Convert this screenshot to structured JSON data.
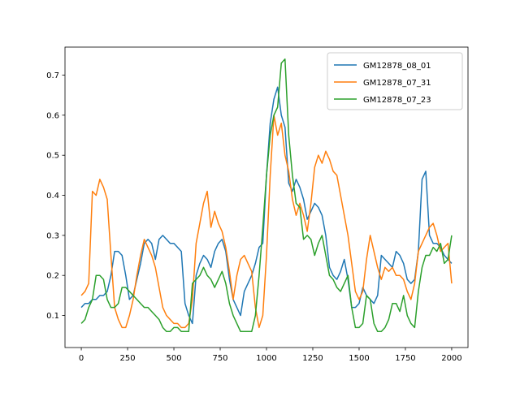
{
  "chart_data": {
    "type": "line",
    "title": "",
    "xlabel": "",
    "ylabel": "",
    "xlim": [
      -88,
      2088
    ],
    "ylim": [
      0.02,
      0.77
    ],
    "xticks": [
      0,
      250,
      500,
      750,
      1000,
      1250,
      1500,
      1750,
      2000
    ],
    "yticks": [
      0.1,
      0.2,
      0.3,
      0.4,
      0.5,
      0.6,
      0.7
    ],
    "grid": false,
    "legend_position": "top-right",
    "series": [
      {
        "name": "GM12878_08_01",
        "color": "#1f77b4",
        "x": [
          0,
          20,
          40,
          60,
          80,
          100,
          120,
          140,
          160,
          180,
          200,
          220,
          240,
          260,
          280,
          300,
          320,
          340,
          360,
          380,
          400,
          420,
          440,
          460,
          480,
          500,
          520,
          540,
          560,
          580,
          600,
          620,
          640,
          660,
          680,
          700,
          720,
          740,
          760,
          780,
          800,
          820,
          840,
          860,
          880,
          900,
          920,
          940,
          960,
          980,
          1000,
          1020,
          1040,
          1060,
          1080,
          1100,
          1120,
          1140,
          1160,
          1180,
          1200,
          1220,
          1240,
          1260,
          1280,
          1300,
          1320,
          1340,
          1360,
          1380,
          1400,
          1420,
          1440,
          1460,
          1480,
          1500,
          1520,
          1540,
          1560,
          1580,
          1600,
          1620,
          1640,
          1660,
          1680,
          1700,
          1720,
          1740,
          1760,
          1780,
          1800,
          1820,
          1840,
          1860,
          1880,
          1900,
          1920,
          1940,
          1960,
          1980,
          2000
        ],
        "y": [
          0.12,
          0.13,
          0.13,
          0.14,
          0.14,
          0.15,
          0.15,
          0.16,
          0.2,
          0.26,
          0.26,
          0.25,
          0.2,
          0.14,
          0.15,
          0.19,
          0.23,
          0.28,
          0.29,
          0.28,
          0.24,
          0.29,
          0.3,
          0.29,
          0.28,
          0.28,
          0.27,
          0.26,
          0.13,
          0.1,
          0.08,
          0.2,
          0.23,
          0.25,
          0.24,
          0.22,
          0.26,
          0.28,
          0.29,
          0.26,
          0.19,
          0.14,
          0.12,
          0.1,
          0.16,
          0.18,
          0.2,
          0.23,
          0.27,
          0.28,
          0.45,
          0.58,
          0.64,
          0.67,
          0.6,
          0.57,
          0.43,
          0.41,
          0.44,
          0.42,
          0.39,
          0.34,
          0.36,
          0.38,
          0.37,
          0.35,
          0.3,
          0.22,
          0.2,
          0.19,
          0.21,
          0.24,
          0.19,
          0.12,
          0.12,
          0.13,
          0.17,
          0.15,
          0.14,
          0.13,
          0.15,
          0.25,
          0.24,
          0.23,
          0.22,
          0.26,
          0.25,
          0.23,
          0.19,
          0.18,
          0.19,
          0.26,
          0.44,
          0.46,
          0.3,
          0.28,
          0.28,
          0.27,
          0.25,
          0.24,
          0.23
        ]
      },
      {
        "name": "GM12878_07_31",
        "color": "#ff7f0e",
        "x": [
          0,
          20,
          40,
          60,
          80,
          100,
          120,
          140,
          160,
          180,
          200,
          220,
          240,
          260,
          280,
          300,
          320,
          340,
          360,
          380,
          400,
          420,
          440,
          460,
          480,
          500,
          520,
          540,
          560,
          580,
          600,
          620,
          640,
          660,
          680,
          700,
          720,
          740,
          760,
          780,
          800,
          820,
          840,
          860,
          880,
          900,
          920,
          940,
          960,
          980,
          1000,
          1020,
          1040,
          1060,
          1080,
          1100,
          1120,
          1140,
          1160,
          1180,
          1200,
          1220,
          1240,
          1260,
          1280,
          1300,
          1320,
          1340,
          1360,
          1380,
          1400,
          1420,
          1440,
          1460,
          1480,
          1500,
          1520,
          1540,
          1560,
          1580,
          1600,
          1620,
          1640,
          1660,
          1680,
          1700,
          1720,
          1740,
          1760,
          1780,
          1800,
          1820,
          1840,
          1860,
          1880,
          1900,
          1920,
          1940,
          1960,
          1980,
          2000
        ],
        "y": [
          0.15,
          0.16,
          0.18,
          0.41,
          0.4,
          0.44,
          0.42,
          0.39,
          0.25,
          0.12,
          0.09,
          0.07,
          0.07,
          0.1,
          0.14,
          0.2,
          0.25,
          0.29,
          0.27,
          0.25,
          0.22,
          0.17,
          0.12,
          0.1,
          0.09,
          0.08,
          0.08,
          0.07,
          0.07,
          0.08,
          0.14,
          0.28,
          0.33,
          0.38,
          0.41,
          0.32,
          0.36,
          0.33,
          0.31,
          0.27,
          0.21,
          0.14,
          0.2,
          0.24,
          0.25,
          0.23,
          0.21,
          0.12,
          0.07,
          0.1,
          0.25,
          0.45,
          0.6,
          0.55,
          0.58,
          0.5,
          0.46,
          0.39,
          0.35,
          0.38,
          0.35,
          0.31,
          0.38,
          0.47,
          0.5,
          0.48,
          0.51,
          0.49,
          0.46,
          0.45,
          0.4,
          0.35,
          0.3,
          0.23,
          0.16,
          0.14,
          0.16,
          0.24,
          0.3,
          0.26,
          0.22,
          0.19,
          0.22,
          0.21,
          0.22,
          0.2,
          0.2,
          0.19,
          0.16,
          0.14,
          0.18,
          0.26,
          0.28,
          0.3,
          0.32,
          0.33,
          0.3,
          0.26,
          0.27,
          0.28,
          0.18
        ]
      },
      {
        "name": "GM12878_07_23",
        "color": "#2ca02c",
        "x": [
          0,
          20,
          40,
          60,
          80,
          100,
          120,
          140,
          160,
          180,
          200,
          220,
          240,
          260,
          280,
          300,
          320,
          340,
          360,
          380,
          400,
          420,
          440,
          460,
          480,
          500,
          520,
          540,
          560,
          580,
          600,
          620,
          640,
          660,
          680,
          700,
          720,
          740,
          760,
          780,
          800,
          820,
          840,
          860,
          880,
          900,
          920,
          940,
          960,
          980,
          1000,
          1020,
          1040,
          1060,
          1080,
          1100,
          1120,
          1140,
          1160,
          1180,
          1200,
          1220,
          1240,
          1260,
          1280,
          1300,
          1320,
          1340,
          1360,
          1380,
          1400,
          1420,
          1440,
          1460,
          1480,
          1500,
          1520,
          1540,
          1560,
          1580,
          1600,
          1620,
          1640,
          1660,
          1680,
          1700,
          1720,
          1740,
          1760,
          1780,
          1800,
          1820,
          1840,
          1860,
          1880,
          1900,
          1920,
          1940,
          1960,
          1980,
          2000
        ],
        "y": [
          0.08,
          0.09,
          0.12,
          0.14,
          0.2,
          0.2,
          0.19,
          0.14,
          0.12,
          0.12,
          0.13,
          0.17,
          0.17,
          0.16,
          0.15,
          0.14,
          0.13,
          0.12,
          0.12,
          0.11,
          0.1,
          0.09,
          0.07,
          0.06,
          0.06,
          0.07,
          0.07,
          0.06,
          0.06,
          0.06,
          0.18,
          0.19,
          0.2,
          0.22,
          0.2,
          0.19,
          0.17,
          0.19,
          0.21,
          0.18,
          0.13,
          0.1,
          0.08,
          0.06,
          0.06,
          0.06,
          0.06,
          0.1,
          0.2,
          0.32,
          0.45,
          0.55,
          0.6,
          0.62,
          0.73,
          0.74,
          0.55,
          0.45,
          0.38,
          0.37,
          0.29,
          0.3,
          0.29,
          0.25,
          0.28,
          0.3,
          0.25,
          0.2,
          0.19,
          0.17,
          0.16,
          0.18,
          0.2,
          0.12,
          0.07,
          0.07,
          0.08,
          0.15,
          0.14,
          0.08,
          0.06,
          0.06,
          0.07,
          0.09,
          0.13,
          0.13,
          0.11,
          0.15,
          0.1,
          0.08,
          0.07,
          0.16,
          0.22,
          0.25,
          0.25,
          0.27,
          0.26,
          0.28,
          0.23,
          0.24,
          0.3
        ]
      }
    ]
  }
}
